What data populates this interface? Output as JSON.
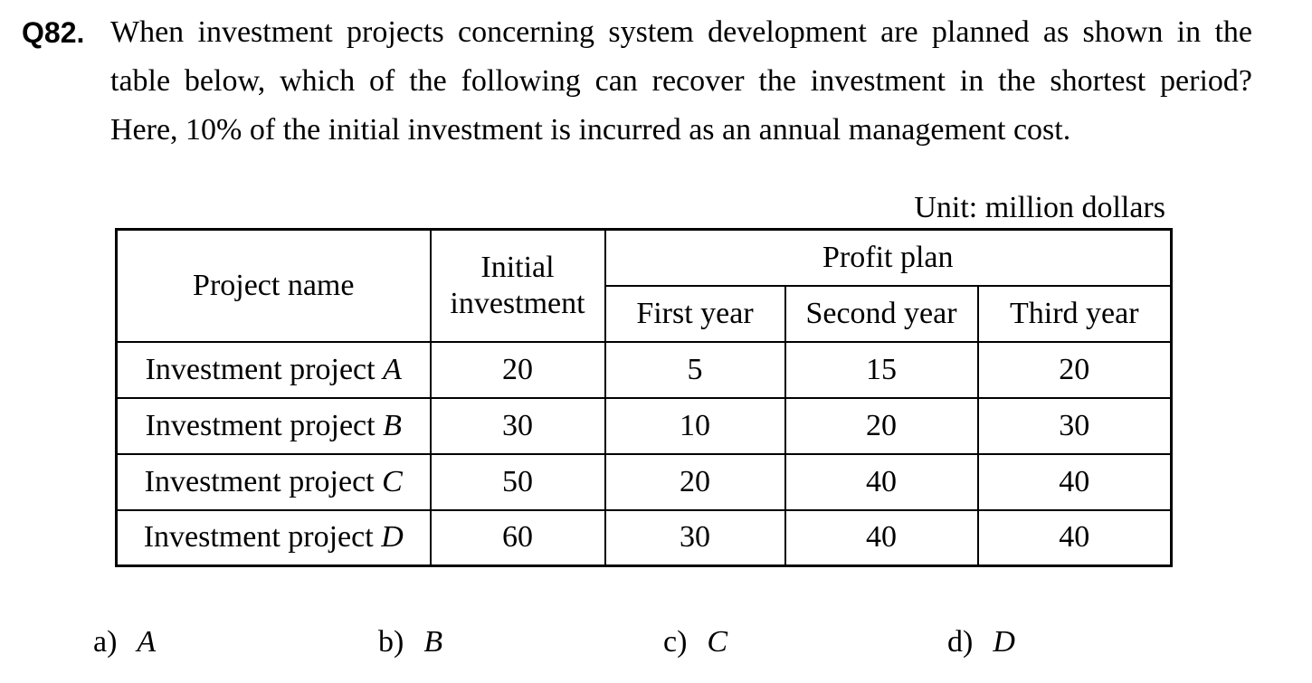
{
  "question": {
    "number": "Q82.",
    "line1": "When investment projects concerning system development are planned as shown in the",
    "line2": "table below, which of the following can recover the investment in the shortest period?",
    "line3": "Here, 10% of the initial investment is incurred as an annual management cost."
  },
  "table": {
    "unit": "Unit: million dollars",
    "headers": {
      "project_name": "Project name",
      "initial_investment_line1": "Initial",
      "initial_investment_line2": "investment",
      "profit_plan": "Profit plan",
      "first_year": "First year",
      "second_year": "Second year",
      "third_year": "Third year"
    },
    "rows": [
      {
        "name_prefix": "Investment project ",
        "name_letter": "A",
        "initial": "20",
        "y1": "5",
        "y2": "15",
        "y3": "20"
      },
      {
        "name_prefix": "Investment project ",
        "name_letter": "B",
        "initial": "30",
        "y1": "10",
        "y2": "20",
        "y3": "30"
      },
      {
        "name_prefix": "Investment project ",
        "name_letter": "C",
        "initial": "50",
        "y1": "20",
        "y2": "40",
        "y3": "40"
      },
      {
        "name_prefix": "Investment project ",
        "name_letter": "D",
        "initial": "60",
        "y1": "30",
        "y2": "40",
        "y3": "40"
      }
    ]
  },
  "choices": [
    {
      "label": "a)",
      "value": "A"
    },
    {
      "label": "b)",
      "value": "B"
    },
    {
      "label": "c)",
      "value": "C"
    },
    {
      "label": "d)",
      "value": "D"
    }
  ]
}
